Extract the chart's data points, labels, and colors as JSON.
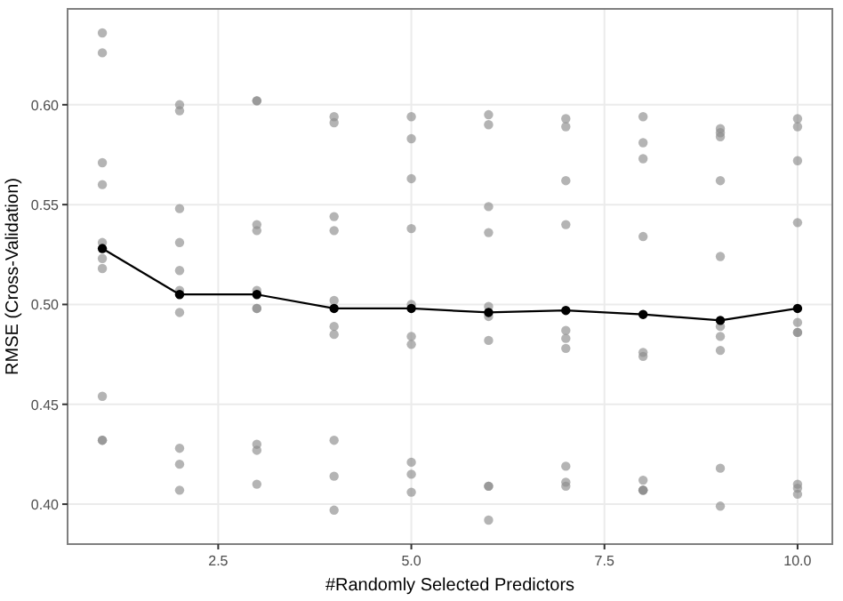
{
  "chart_data": {
    "type": "scatter",
    "xlabel": "#Randomly Selected Predictors",
    "ylabel": "RMSE (Cross-Validation)",
    "xlim": [
      0.55,
      10.45
    ],
    "ylim": [
      0.38,
      0.648
    ],
    "xticks": [
      2.5,
      {
        "value": 5,
        "label": "5.0"
      },
      7.5,
      {
        "value": 10,
        "label": "10.0"
      }
    ],
    "yticks": [
      {
        "value": 0.4,
        "label": "0.40"
      },
      0.45,
      {
        "value": 0.5,
        "label": "0.50"
      },
      0.55,
      {
        "value": 0.6,
        "label": "0.60"
      }
    ],
    "grid": true,
    "series": [
      {
        "color": "#8c8c8c",
        "marker": "circle",
        "x": [
          1,
          1,
          1,
          1,
          1,
          1,
          1,
          1,
          1,
          1,
          2,
          2,
          2,
          2,
          2,
          2,
          2,
          2,
          2,
          2,
          3,
          3,
          3,
          3,
          3,
          3,
          3,
          3,
          3,
          3,
          4,
          4,
          4,
          4,
          4,
          4,
          4,
          4,
          4,
          4,
          5,
          5,
          5,
          5,
          5,
          5,
          5,
          5,
          5,
          5,
          6,
          6,
          6,
          6,
          6,
          6,
          6,
          6,
          6,
          6,
          7,
          7,
          7,
          7,
          7,
          7,
          7,
          7,
          7,
          7,
          8,
          8,
          8,
          8,
          8,
          8,
          8,
          8,
          8,
          8,
          9,
          9,
          9,
          9,
          9,
          9,
          9,
          9,
          9,
          9,
          10,
          10,
          10,
          10,
          10,
          10,
          10,
          10,
          10,
          10
        ],
        "values": [
          0.636,
          0.626,
          0.571,
          0.56,
          0.531,
          0.523,
          0.518,
          0.454,
          0.432,
          0.432,
          0.6,
          0.597,
          0.548,
          0.531,
          0.517,
          0.507,
          0.496,
          0.428,
          0.42,
          0.407,
          0.602,
          0.602,
          0.54,
          0.537,
          0.507,
          0.498,
          0.498,
          0.43,
          0.427,
          0.41,
          0.594,
          0.591,
          0.544,
          0.537,
          0.502,
          0.489,
          0.485,
          0.432,
          0.414,
          0.397,
          0.594,
          0.583,
          0.563,
          0.538,
          0.5,
          0.484,
          0.48,
          0.421,
          0.415,
          0.406,
          0.595,
          0.59,
          0.549,
          0.536,
          0.499,
          0.494,
          0.482,
          0.409,
          0.409,
          0.392,
          0.593,
          0.589,
          0.562,
          0.54,
          0.487,
          0.483,
          0.478,
          0.419,
          0.411,
          0.409,
          0.594,
          0.581,
          0.573,
          0.534,
          0.476,
          0.474,
          0.412,
          0.407,
          0.407,
          0.407,
          0.588,
          0.586,
          0.584,
          0.562,
          0.524,
          0.489,
          0.484,
          0.477,
          0.418,
          0.399,
          0.593,
          0.589,
          0.572,
          0.541,
          0.491,
          0.486,
          0.486,
          0.41,
          0.408,
          0.405
        ]
      },
      {
        "type": "line",
        "color": "#000000",
        "marker": "circle",
        "line_style": "solid",
        "x": [
          1,
          2,
          3,
          4,
          5,
          6,
          7,
          8,
          9,
          10
        ],
        "values": [
          0.528,
          0.505,
          0.505,
          0.498,
          0.498,
          0.496,
          0.497,
          0.495,
          0.492,
          0.498
        ]
      }
    ]
  }
}
